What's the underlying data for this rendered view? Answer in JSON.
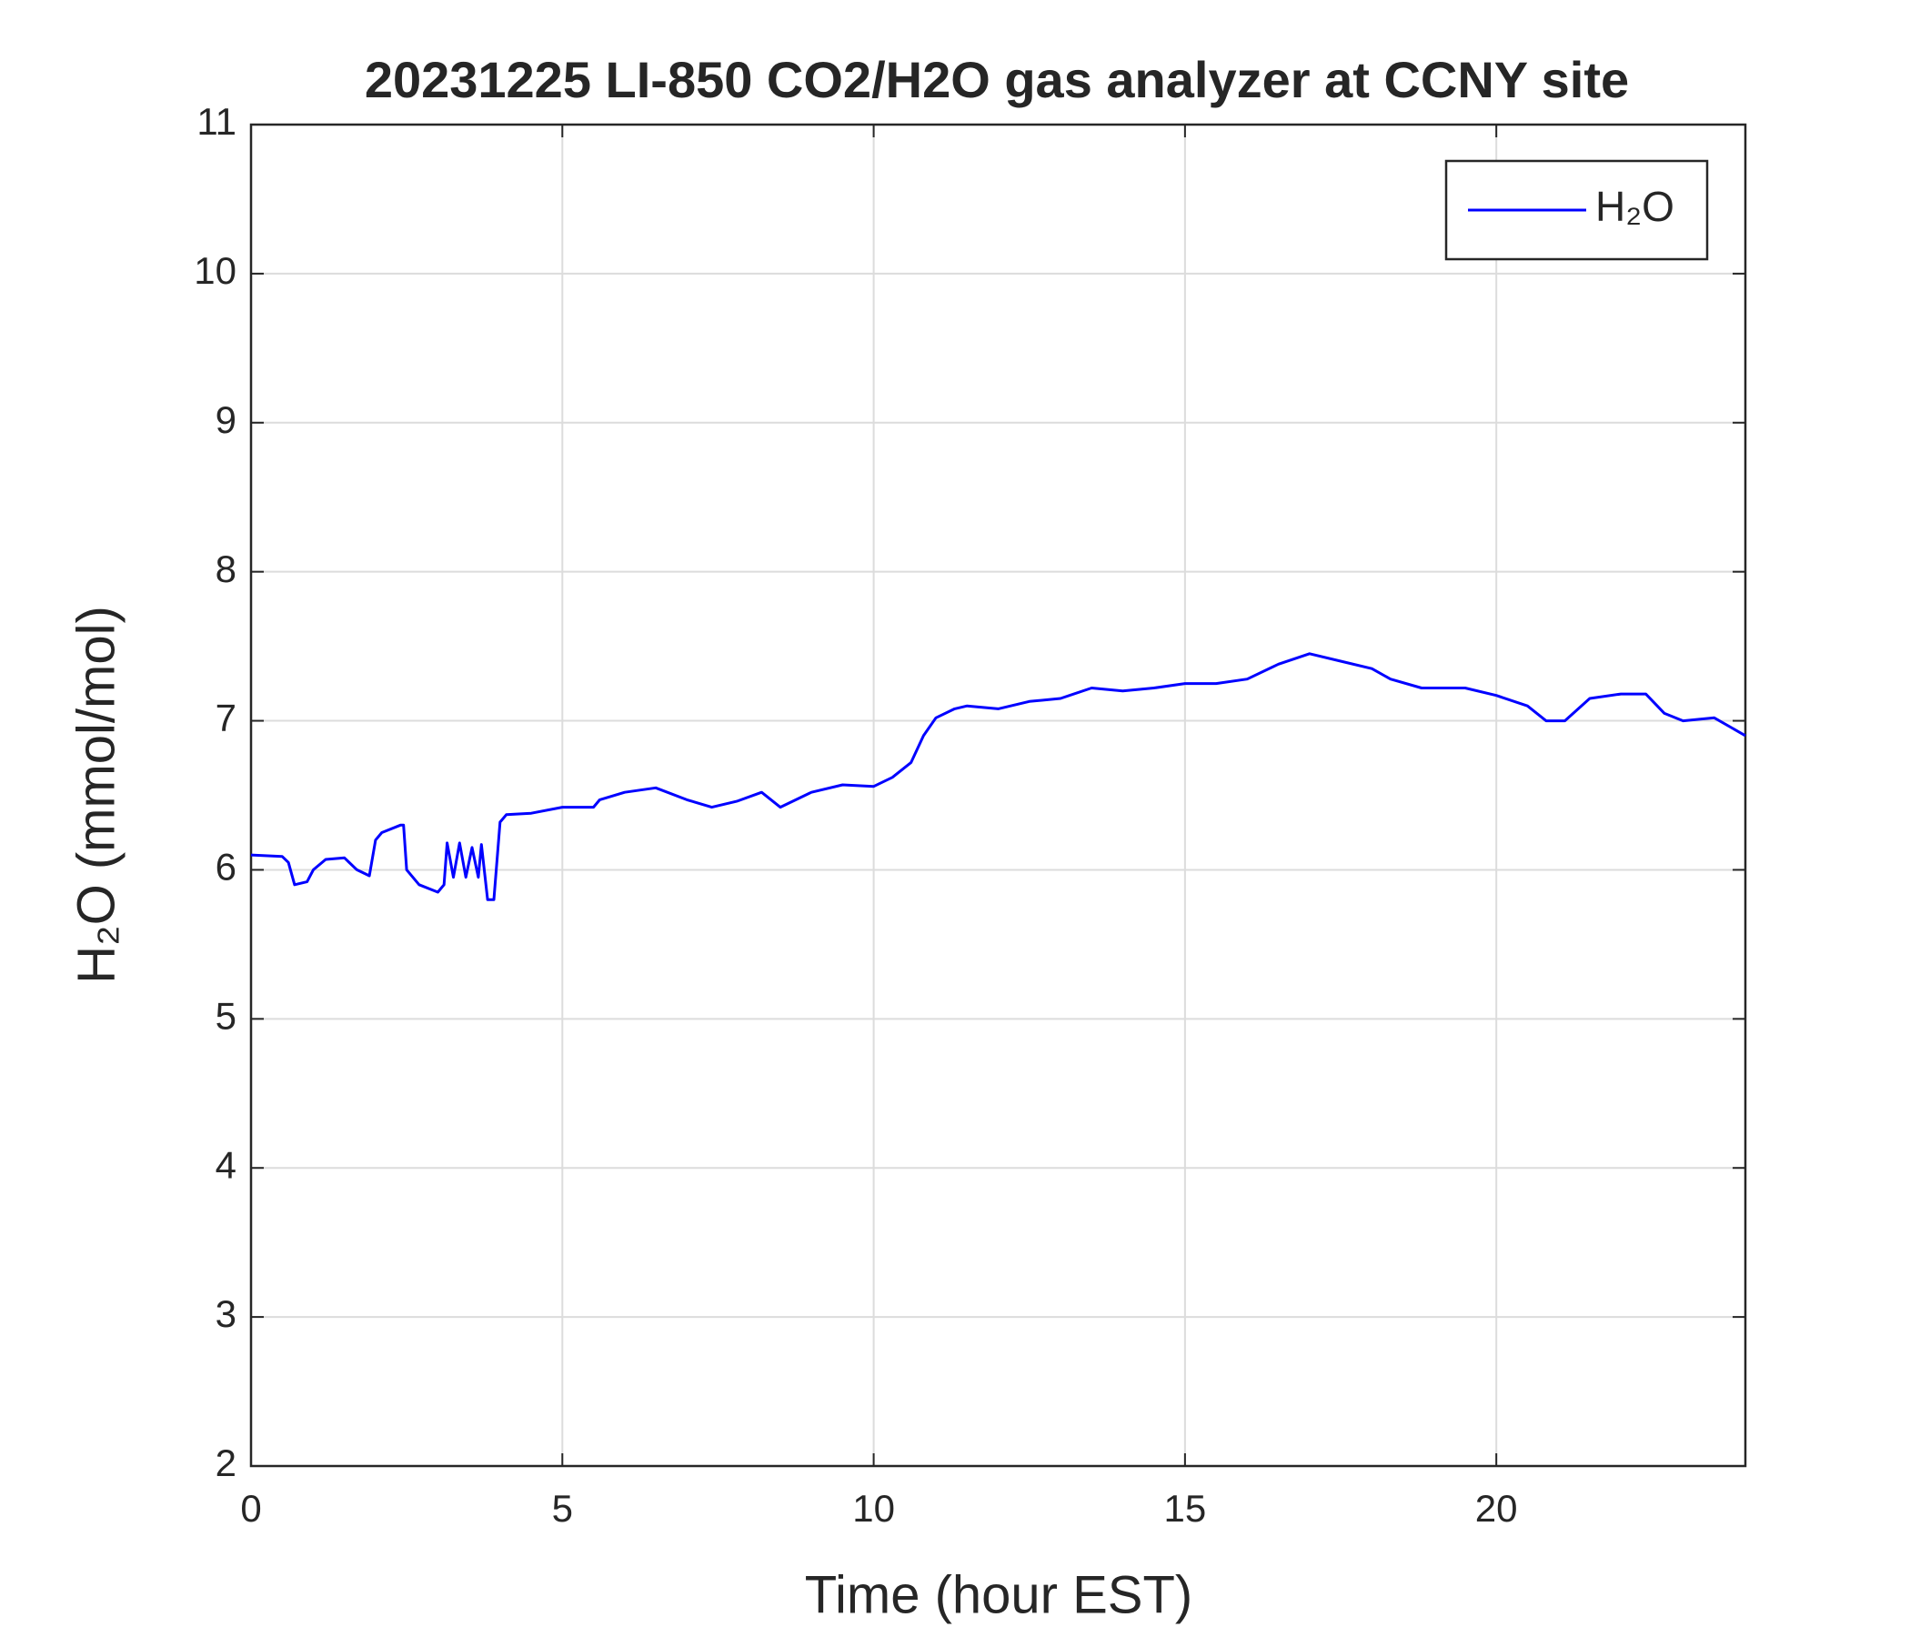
{
  "chart_data": {
    "type": "line",
    "title": "20231225 LI-850 CO2/H2O gas analyzer at CCNY site",
    "xlabel": "Time (hour EST)",
    "ylabel": "H₂O (mmol/mol)",
    "xlim": [
      0,
      24
    ],
    "xticks": [
      0,
      5,
      10,
      15,
      20
    ],
    "ylim": [
      2,
      11
    ],
    "yticks": [
      2,
      3,
      4,
      5,
      6,
      7,
      8,
      9,
      10,
      11
    ],
    "grid": true,
    "legend": "upper right",
    "series": [
      {
        "name": "H₂O",
        "color": "#0000ff",
        "x": [
          0,
          0.5,
          0.6,
          0.7,
          0.9,
          1.0,
          1.2,
          1.5,
          1.7,
          1.9,
          2.0,
          2.1,
          2.4,
          2.45,
          2.5,
          2.7,
          3.0,
          3.1,
          3.15,
          3.25,
          3.35,
          3.45,
          3.55,
          3.65,
          3.7,
          3.8,
          3.9,
          4.0,
          4.1,
          4.5,
          5.0,
          5.5,
          5.6,
          6.0,
          6.5,
          7.0,
          7.4,
          7.8,
          8.2,
          8.5,
          9.0,
          9.5,
          10.0,
          10.3,
          10.6,
          10.8,
          11.0,
          11.3,
          11.5,
          12.0,
          12.5,
          13.0,
          13.5,
          14.0,
          14.5,
          15.0,
          15.5,
          16.0,
          16.5,
          17.0,
          17.5,
          18.0,
          18.3,
          18.8,
          19.5,
          20.0,
          20.5,
          20.8,
          21.1,
          21.5,
          22.0,
          22.4,
          22.7,
          23.0,
          23.5,
          24.0
        ],
        "values": [
          6.1,
          6.09,
          6.05,
          5.9,
          5.92,
          6.0,
          6.07,
          6.08,
          6.0,
          5.96,
          6.2,
          6.25,
          6.3,
          6.3,
          6.0,
          5.9,
          5.85,
          5.9,
          6.18,
          5.95,
          6.18,
          5.95,
          6.15,
          5.95,
          6.17,
          5.8,
          5.8,
          6.32,
          6.37,
          6.38,
          6.42,
          6.42,
          6.47,
          6.52,
          6.55,
          6.47,
          6.42,
          6.46,
          6.52,
          6.42,
          6.52,
          6.57,
          6.56,
          6.62,
          6.72,
          6.9,
          7.02,
          7.08,
          7.1,
          7.08,
          7.13,
          7.15,
          7.22,
          7.2,
          7.22,
          7.25,
          7.25,
          7.28,
          7.38,
          7.45,
          7.4,
          7.35,
          7.28,
          7.22,
          7.22,
          7.17,
          7.1,
          7.0,
          7.0,
          7.15,
          7.18,
          7.18,
          7.05,
          7.0,
          7.02,
          6.9
        ]
      }
    ]
  }
}
